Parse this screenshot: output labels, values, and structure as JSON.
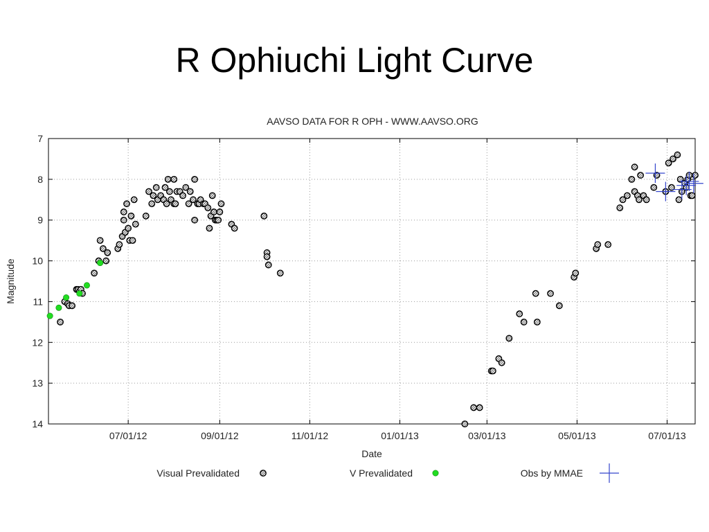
{
  "slide": {
    "title": "R Ophiuchi Light Curve"
  },
  "chart_data": {
    "type": "scatter",
    "title": "AAVSO DATA FOR R OPH - WWW.AAVSO.ORG",
    "xlabel": "Date",
    "ylabel": "Magnitude",
    "ylim": [
      14,
      7
    ],
    "xlim": [
      "2012-05-08",
      "2013-07-20"
    ],
    "y_reversed": true,
    "grid": true,
    "legend_position": "bottom",
    "x_ticks": [
      {
        "label": "07/01/12",
        "date": "2012-07-01"
      },
      {
        "label": "09/01/12",
        "date": "2012-09-01"
      },
      {
        "label": "11/01/12",
        "date": "2012-11-01"
      },
      {
        "label": "01/01/13",
        "date": "2013-01-01"
      },
      {
        "label": "03/01/13",
        "date": "2013-03-01"
      },
      {
        "label": "05/01/13",
        "date": "2013-05-01"
      },
      {
        "label": "07/01/13",
        "date": "2013-07-01"
      }
    ],
    "y_ticks": [
      7,
      8,
      9,
      10,
      11,
      12,
      13,
      14
    ],
    "series": [
      {
        "name": "Visual Prevalidated",
        "marker": "circle-hatched",
        "color": "#000000",
        "points": [
          [
            "2012-05-16",
            11.5
          ],
          [
            "2012-05-19",
            11.0
          ],
          [
            "2012-05-21",
            11.05
          ],
          [
            "2012-05-22",
            11.1
          ],
          [
            "2012-05-24",
            11.1
          ],
          [
            "2012-05-27",
            10.7
          ],
          [
            "2012-05-28",
            10.7
          ],
          [
            "2012-05-29",
            10.75
          ],
          [
            "2012-05-30",
            10.7
          ],
          [
            "2012-05-31",
            10.8
          ],
          [
            "2012-06-08",
            10.3
          ],
          [
            "2012-06-11",
            10.0
          ],
          [
            "2012-06-12",
            9.5
          ],
          [
            "2012-06-14",
            9.7
          ],
          [
            "2012-06-16",
            10.0
          ],
          [
            "2012-06-17",
            9.8
          ],
          [
            "2012-06-24",
            9.7
          ],
          [
            "2012-06-25",
            9.6
          ],
          [
            "2012-06-27",
            9.4
          ],
          [
            "2012-06-28",
            9.0
          ],
          [
            "2012-06-28",
            8.8
          ],
          [
            "2012-06-29",
            9.3
          ],
          [
            "2012-06-30",
            8.6
          ],
          [
            "2012-07-01",
            9.2
          ],
          [
            "2012-07-02",
            9.5
          ],
          [
            "2012-07-03",
            8.9
          ],
          [
            "2012-07-04",
            9.5
          ],
          [
            "2012-07-05",
            8.5
          ],
          [
            "2012-07-06",
            9.1
          ],
          [
            "2012-07-13",
            8.9
          ],
          [
            "2012-07-15",
            8.3
          ],
          [
            "2012-07-17",
            8.6
          ],
          [
            "2012-07-18",
            8.4
          ],
          [
            "2012-07-20",
            8.2
          ],
          [
            "2012-07-21",
            8.5
          ],
          [
            "2012-07-23",
            8.4
          ],
          [
            "2012-07-25",
            8.5
          ],
          [
            "2012-07-26",
            8.2
          ],
          [
            "2012-07-27",
            8.6
          ],
          [
            "2012-07-28",
            8.0
          ],
          [
            "2012-07-29",
            8.3
          ],
          [
            "2012-07-30",
            8.5
          ],
          [
            "2012-08-01",
            8.6
          ],
          [
            "2012-08-01",
            8.0
          ],
          [
            "2012-08-02",
            8.6
          ],
          [
            "2012-08-03",
            8.3
          ],
          [
            "2012-08-05",
            8.3
          ],
          [
            "2012-08-07",
            8.4
          ],
          [
            "2012-08-09",
            8.2
          ],
          [
            "2012-08-11",
            8.6
          ],
          [
            "2012-08-12",
            8.3
          ],
          [
            "2012-08-14",
            8.5
          ],
          [
            "2012-08-15",
            8.0
          ],
          [
            "2012-08-15",
            9.0
          ],
          [
            "2012-08-17",
            8.6
          ],
          [
            "2012-08-18",
            8.6
          ],
          [
            "2012-08-19",
            8.5
          ],
          [
            "2012-08-21",
            8.6
          ],
          [
            "2012-08-22",
            8.6
          ],
          [
            "2012-08-24",
            8.7
          ],
          [
            "2012-08-25",
            9.2
          ],
          [
            "2012-08-26",
            8.9
          ],
          [
            "2012-08-27",
            8.4
          ],
          [
            "2012-08-28",
            8.8
          ],
          [
            "2012-08-29",
            9.0
          ],
          [
            "2012-08-30",
            9.0
          ],
          [
            "2012-08-31",
            9.0
          ],
          [
            "2012-09-01",
            8.8
          ],
          [
            "2012-09-02",
            8.6
          ],
          [
            "2012-09-09",
            9.1
          ],
          [
            "2012-09-11",
            9.2
          ],
          [
            "2012-10-01",
            8.9
          ],
          [
            "2012-10-03",
            9.8
          ],
          [
            "2012-10-03",
            9.9
          ],
          [
            "2012-10-04",
            10.1
          ],
          [
            "2012-10-12",
            10.3
          ],
          [
            "2013-02-14",
            14.0
          ],
          [
            "2013-02-20",
            13.6
          ],
          [
            "2013-02-24",
            13.6
          ],
          [
            "2013-03-04",
            12.7
          ],
          [
            "2013-03-05",
            12.7
          ],
          [
            "2013-03-09",
            12.4
          ],
          [
            "2013-03-11",
            12.5
          ],
          [
            "2013-03-16",
            11.9
          ],
          [
            "2013-03-23",
            11.3
          ],
          [
            "2013-03-26",
            11.5
          ],
          [
            "2013-04-03",
            10.8
          ],
          [
            "2013-04-04",
            11.5
          ],
          [
            "2013-04-13",
            10.8
          ],
          [
            "2013-04-19",
            11.1
          ],
          [
            "2013-04-29",
            10.4
          ],
          [
            "2013-04-30",
            10.3
          ],
          [
            "2013-05-14",
            9.7
          ],
          [
            "2013-05-15",
            9.6
          ],
          [
            "2013-05-22",
            9.6
          ],
          [
            "2013-05-30",
            8.7
          ],
          [
            "2013-06-01",
            8.5
          ],
          [
            "2013-06-04",
            8.4
          ],
          [
            "2013-06-07",
            8.0
          ],
          [
            "2013-06-09",
            7.7
          ],
          [
            "2013-06-09",
            8.3
          ],
          [
            "2013-06-11",
            8.4
          ],
          [
            "2013-06-12",
            8.5
          ],
          [
            "2013-06-13",
            7.9
          ],
          [
            "2013-06-15",
            8.4
          ],
          [
            "2013-06-17",
            8.5
          ],
          [
            "2013-06-22",
            8.2
          ],
          [
            "2013-06-24",
            7.9
          ],
          [
            "2013-06-30",
            8.3
          ],
          [
            "2013-07-02",
            7.6
          ],
          [
            "2013-07-04",
            8.2
          ],
          [
            "2013-07-05",
            7.5
          ],
          [
            "2013-07-08",
            7.4
          ],
          [
            "2013-07-09",
            8.5
          ],
          [
            "2013-07-10",
            8.0
          ],
          [
            "2013-07-11",
            8.3
          ],
          [
            "2013-07-13",
            8.1
          ],
          [
            "2013-07-14",
            8.2
          ],
          [
            "2013-07-15",
            8.0
          ],
          [
            "2013-07-16",
            7.9
          ],
          [
            "2013-07-17",
            8.4
          ],
          [
            "2013-07-18",
            8.4
          ],
          [
            "2013-07-20",
            7.9
          ]
        ]
      },
      {
        "name": "V Prevalidated",
        "marker": "circle-filled",
        "color": "#22dd22",
        "points": [
          [
            "2012-05-09",
            11.35
          ],
          [
            "2012-05-15",
            11.15
          ],
          [
            "2012-05-20",
            10.9
          ],
          [
            "2012-05-29",
            10.8
          ],
          [
            "2012-06-03",
            10.6
          ],
          [
            "2012-06-12",
            10.05
          ]
        ]
      },
      {
        "name": "Obs by MMAE",
        "marker": "cross",
        "color": "#3344cc",
        "points": [
          [
            "2013-06-23",
            7.85
          ],
          [
            "2013-06-30",
            8.3
          ],
          [
            "2013-07-11",
            8.25
          ],
          [
            "2013-07-14",
            8.15
          ],
          [
            "2013-07-16",
            8.05
          ],
          [
            "2013-07-19",
            8.1
          ]
        ]
      }
    ]
  }
}
